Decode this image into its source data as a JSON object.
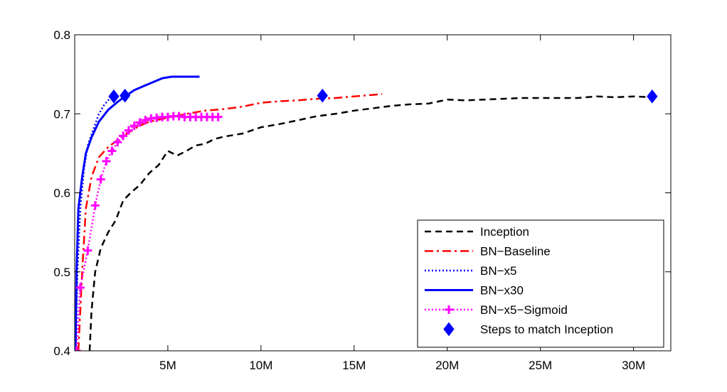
{
  "chart_data": {
    "type": "line",
    "title": "",
    "xlabel": "",
    "ylabel": "",
    "xlim": [
      0,
      32000000
    ],
    "ylim": [
      0.4,
      0.8
    ],
    "x_ticks": [
      {
        "value": 5000000,
        "label": "5M"
      },
      {
        "value": 10000000,
        "label": "10M"
      },
      {
        "value": 15000000,
        "label": "15M"
      },
      {
        "value": 20000000,
        "label": "20M"
      },
      {
        "value": 25000000,
        "label": "25M"
      },
      {
        "value": 30000000,
        "label": "30M"
      }
    ],
    "y_ticks": [
      {
        "value": 0.4,
        "label": "0.4"
      },
      {
        "value": 0.5,
        "label": "0.5"
      },
      {
        "value": 0.6,
        "label": "0.6"
      },
      {
        "value": 0.7,
        "label": "0.7"
      },
      {
        "value": 0.8,
        "label": "0.8"
      }
    ],
    "grid": false,
    "legend_position": "bottom-right",
    "series": [
      {
        "name": "Inception",
        "color": "#000000",
        "style": "dashed",
        "marker": "none",
        "points": [
          [
            800000,
            0.4
          ],
          [
            900000,
            0.45
          ],
          [
            1100000,
            0.5
          ],
          [
            1400000,
            0.53
          ],
          [
            1800000,
            0.55
          ],
          [
            2200000,
            0.565
          ],
          [
            2600000,
            0.59
          ],
          [
            3000000,
            0.6
          ],
          [
            3500000,
            0.61
          ],
          [
            4000000,
            0.625
          ],
          [
            4500000,
            0.635
          ],
          [
            5000000,
            0.653
          ],
          [
            5500000,
            0.647
          ],
          [
            6000000,
            0.653
          ],
          [
            6500000,
            0.66
          ],
          [
            7000000,
            0.662
          ],
          [
            7500000,
            0.668
          ],
          [
            8000000,
            0.671
          ],
          [
            9000000,
            0.675
          ],
          [
            10000000,
            0.683
          ],
          [
            11000000,
            0.687
          ],
          [
            12000000,
            0.692
          ],
          [
            13000000,
            0.697
          ],
          [
            14000000,
            0.7
          ],
          [
            15000000,
            0.704
          ],
          [
            16000000,
            0.707
          ],
          [
            17000000,
            0.71
          ],
          [
            18000000,
            0.712
          ],
          [
            19000000,
            0.713
          ],
          [
            20000000,
            0.718
          ],
          [
            21000000,
            0.717
          ],
          [
            22000000,
            0.718
          ],
          [
            23000000,
            0.719
          ],
          [
            24000000,
            0.72
          ],
          [
            25000000,
            0.72
          ],
          [
            26000000,
            0.72
          ],
          [
            27000000,
            0.72
          ],
          [
            28000000,
            0.722
          ],
          [
            29000000,
            0.721
          ],
          [
            30000000,
            0.722
          ],
          [
            31000000,
            0.721
          ]
        ]
      },
      {
        "name": "BN−Baseline",
        "color": "#ff0000",
        "style": "dashdot",
        "marker": "none",
        "points": [
          [
            200000,
            0.4
          ],
          [
            400000,
            0.5
          ],
          [
            600000,
            0.58
          ],
          [
            900000,
            0.62
          ],
          [
            1300000,
            0.645
          ],
          [
            1800000,
            0.658
          ],
          [
            2200000,
            0.665
          ],
          [
            2800000,
            0.675
          ],
          [
            3500000,
            0.685
          ],
          [
            4000000,
            0.69
          ],
          [
            5000000,
            0.695
          ],
          [
            6000000,
            0.7
          ],
          [
            7000000,
            0.704
          ],
          [
            8000000,
            0.706
          ],
          [
            9000000,
            0.709
          ],
          [
            10000000,
            0.714
          ],
          [
            11000000,
            0.716
          ],
          [
            12000000,
            0.717
          ],
          [
            13000000,
            0.719
          ],
          [
            14000000,
            0.72
          ],
          [
            15000000,
            0.722
          ],
          [
            16000000,
            0.724
          ],
          [
            16500000,
            0.725
          ]
        ]
      },
      {
        "name": "BN−x5",
        "color": "#0000ff",
        "style": "dotted",
        "marker": "none",
        "points": [
          [
            50000,
            0.4
          ],
          [
            150000,
            0.5
          ],
          [
            300000,
            0.58
          ],
          [
            500000,
            0.63
          ],
          [
            700000,
            0.66
          ],
          [
            1000000,
            0.68
          ],
          [
            1300000,
            0.7
          ],
          [
            1600000,
            0.712
          ],
          [
            2000000,
            0.722
          ]
        ]
      },
      {
        "name": "BN−x30",
        "color": "#0000ff",
        "style": "solid",
        "marker": "none",
        "points": [
          [
            50000,
            0.4
          ],
          [
            100000,
            0.5
          ],
          [
            200000,
            0.58
          ],
          [
            400000,
            0.62
          ],
          [
            600000,
            0.65
          ],
          [
            900000,
            0.67
          ],
          [
            1300000,
            0.69
          ],
          [
            1800000,
            0.705
          ],
          [
            2300000,
            0.715
          ],
          [
            2700000,
            0.722
          ],
          [
            3200000,
            0.73
          ],
          [
            3700000,
            0.735
          ],
          [
            4200000,
            0.74
          ],
          [
            4700000,
            0.745
          ],
          [
            5200000,
            0.747
          ],
          [
            6000000,
            0.747
          ],
          [
            6700000,
            0.747
          ]
        ]
      },
      {
        "name": "BN−x5−Sigmoid",
        "color": "#ff00ff",
        "style": "dotted",
        "marker": "plus",
        "points": [
          [
            100000,
            0.4
          ],
          [
            300000,
            0.48
          ],
          [
            700000,
            0.527
          ],
          [
            1100000,
            0.584
          ],
          [
            1400000,
            0.617
          ],
          [
            1700000,
            0.64
          ],
          [
            2000000,
            0.653
          ],
          [
            2300000,
            0.664
          ],
          [
            2600000,
            0.672
          ],
          [
            2900000,
            0.679
          ],
          [
            3200000,
            0.685
          ],
          [
            3500000,
            0.689
          ],
          [
            3800000,
            0.692
          ],
          [
            4100000,
            0.694
          ],
          [
            4400000,
            0.695
          ],
          [
            4700000,
            0.696
          ],
          [
            5000000,
            0.696
          ],
          [
            5300000,
            0.697
          ],
          [
            5600000,
            0.697
          ],
          [
            5900000,
            0.696
          ],
          [
            6200000,
            0.696
          ],
          [
            6500000,
            0.696
          ],
          [
            6800000,
            0.696
          ],
          [
            7100000,
            0.696
          ],
          [
            7400000,
            0.696
          ],
          [
            7700000,
            0.696
          ]
        ]
      },
      {
        "name": "Steps to match Inception",
        "color": "#0000ff",
        "style": "none",
        "marker": "diamond",
        "points": [
          [
            2100000,
            0.722
          ],
          [
            2700000,
            0.723
          ],
          [
            13300000,
            0.723
          ],
          [
            31000000,
            0.722
          ]
        ]
      }
    ]
  }
}
